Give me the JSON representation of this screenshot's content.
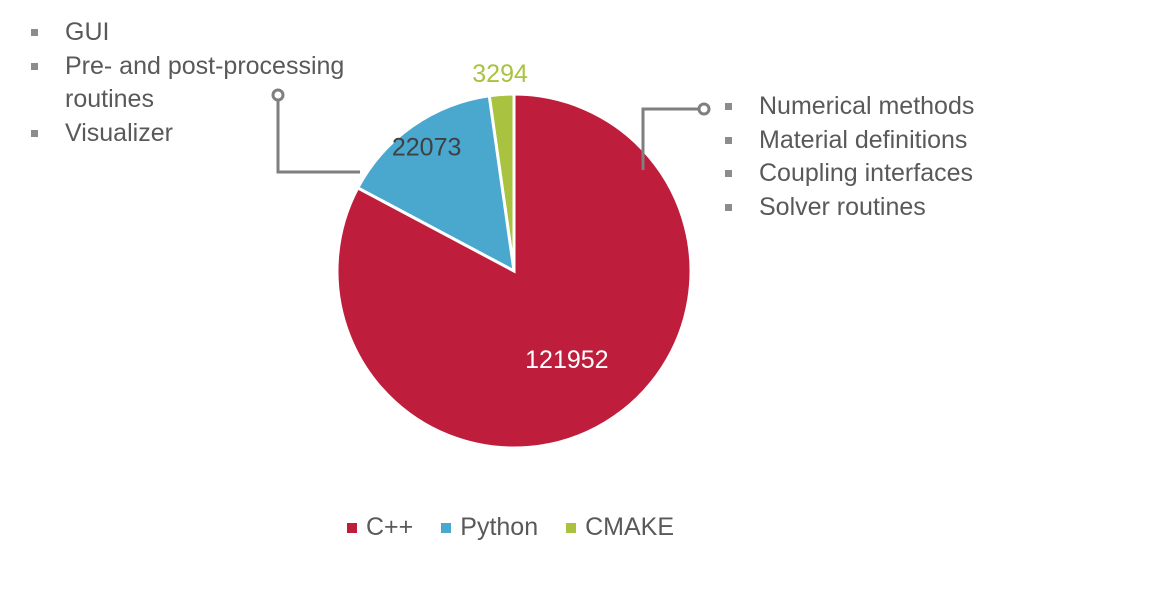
{
  "chart_data": {
    "type": "pie",
    "categories": [
      "C++",
      "Python",
      "CMAKE"
    ],
    "values": [
      121952,
      22073,
      3294
    ],
    "colors": [
      "#be1e3c",
      "#4aa8cf",
      "#a9c23f"
    ],
    "label_colors": [
      "#ffffff",
      "#404040",
      "#a9c23f"
    ],
    "legend_position": "bottom"
  },
  "annotations": {
    "python_notes": [
      "GUI",
      "Pre- and post-processing routines",
      "Visualizer"
    ],
    "cpp_notes": [
      "Numerical methods",
      "Material definitions",
      "Coupling interfaces",
      "Solver routines"
    ]
  }
}
